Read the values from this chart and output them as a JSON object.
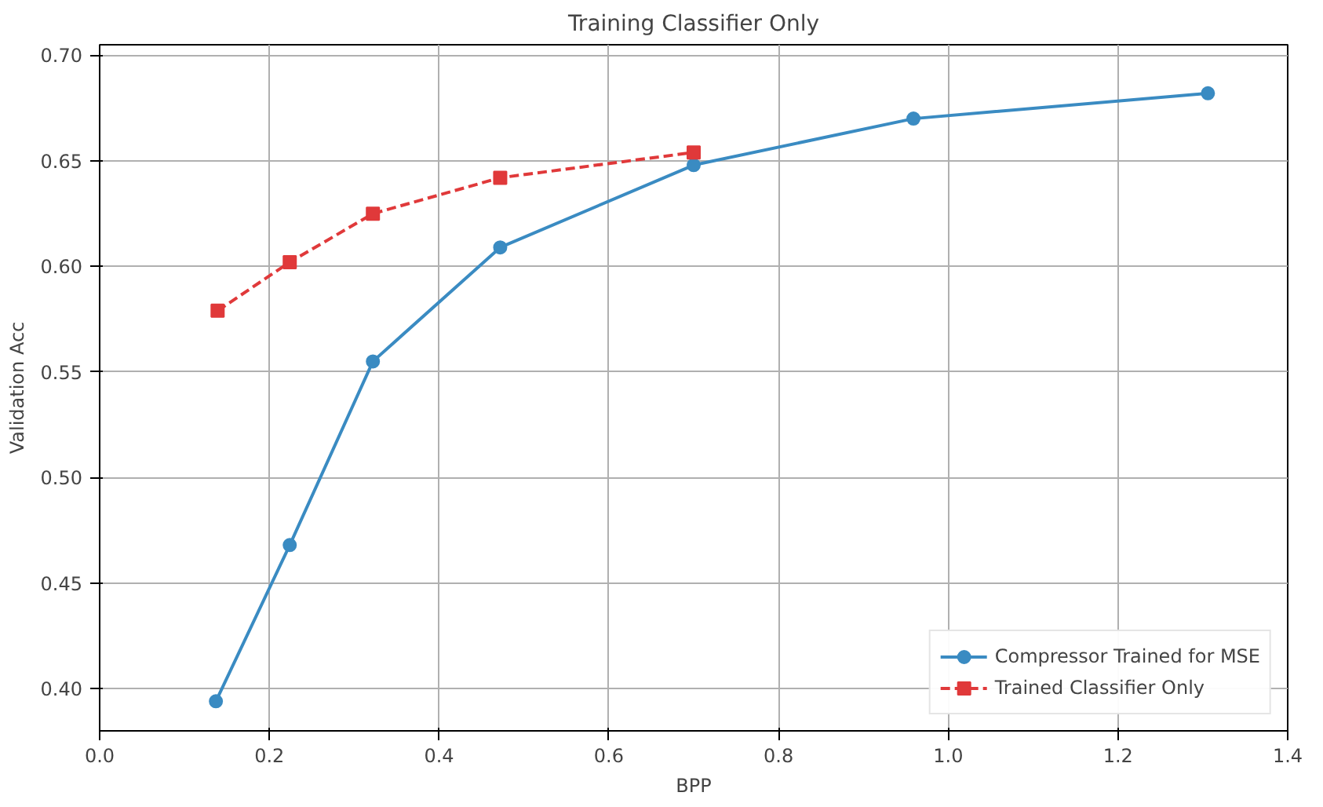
{
  "chart_data": {
    "type": "line",
    "title": "Training Classifier Only",
    "xlabel": "BPP",
    "ylabel": "Validation Acc",
    "xlim": [
      0.0,
      1.4
    ],
    "xticks": [
      {
        "value": 0,
        "label": "0.0"
      },
      0.2,
      0.4,
      0.6,
      0.8,
      {
        "value": 1,
        "label": "1.0"
      },
      1.2,
      1.4
    ],
    "ylim": [
      0.38,
      0.705
    ],
    "yticks": [
      {
        "value": 0.4,
        "label": "0.40"
      },
      0.45,
      {
        "value": 0.5,
        "label": "0.50"
      },
      0.55,
      {
        "value": 0.6,
        "label": "0.60"
      },
      0.65,
      {
        "value": 0.7,
        "label": "0.70"
      }
    ],
    "grid": true,
    "legend": "bottom right",
    "series": [
      {
        "name": "Compressor Trained for MSE",
        "color": "#3a8bc2",
        "marker": "circle",
        "line_style": "solid",
        "x": [
          0.137,
          0.224,
          0.322,
          0.472,
          0.7,
          0.959,
          1.306
        ],
        "values": [
          0.394,
          0.468,
          0.555,
          0.609,
          0.648,
          0.67,
          0.682
        ]
      },
      {
        "name": "Trained Classifier Only",
        "color": "#e0393a",
        "marker": "square",
        "line_style": "dashed",
        "x": [
          0.139,
          0.224,
          0.322,
          0.472,
          0.7
        ],
        "values": [
          0.579,
          0.602,
          0.625,
          0.642,
          0.654
        ]
      }
    ]
  }
}
